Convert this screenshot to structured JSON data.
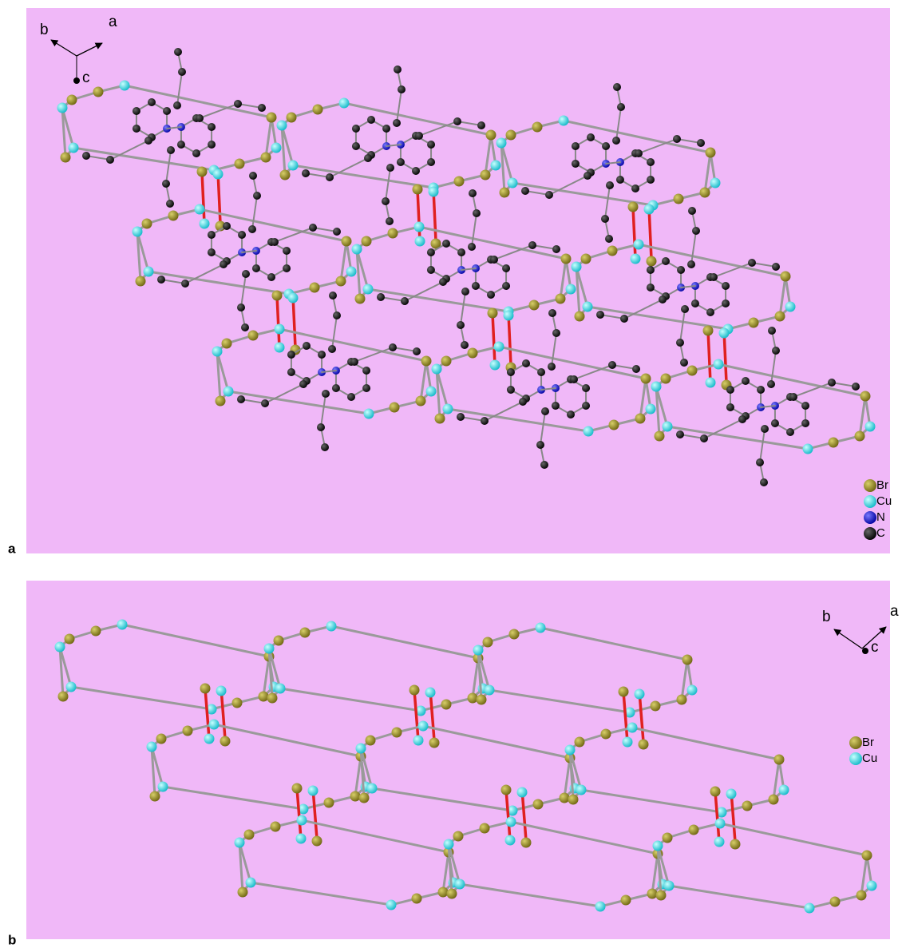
{
  "panels": [
    {
      "label": "a",
      "axes": {
        "a": "a",
        "b": "b",
        "c": "c"
      },
      "legend": [
        "Br",
        "Cu",
        "N",
        "C"
      ]
    },
    {
      "label": "b",
      "axes": {
        "a": "a",
        "b": "b",
        "c": "c"
      },
      "legend": [
        "Br",
        "Cu"
      ]
    }
  ]
}
